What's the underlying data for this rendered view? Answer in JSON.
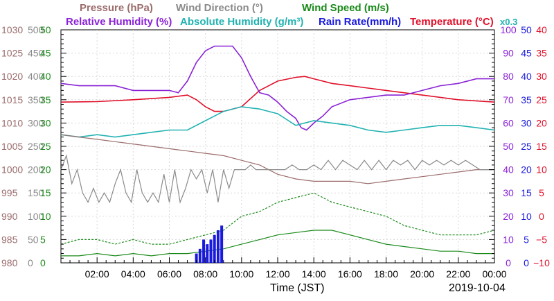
{
  "chart_data": {
    "type": "line",
    "xlabel": "Time (JST)",
    "date_label": "2019-10-04",
    "x_ticks": [
      "02:00",
      "04:00",
      "06:00",
      "08:00",
      "10:00",
      "12:00",
      "14:00",
      "16:00",
      "18:00",
      "20:00",
      "22:00",
      "00:00"
    ],
    "x_hours": [
      0,
      24
    ],
    "legend": [
      {
        "key": "pressure",
        "label": "Pressure (hPa)",
        "color": "#9b6b6b"
      },
      {
        "key": "wind_dir",
        "label": "Wind Direction (°)",
        "color": "#8a8a8a"
      },
      {
        "key": "wind_speed",
        "label": "Wind Speed (m/s)",
        "color": "#1a8a1a"
      },
      {
        "key": "rh",
        "label": "Relative Humidity (%)",
        "color": "#8a22d6"
      },
      {
        "key": "ah",
        "label": "Absolute Humidity (g/m³)",
        "color": "#22b2b2"
      },
      {
        "key": "rain",
        "label": "Rain Rate(mm/h)",
        "color": "#1a1adc"
      },
      {
        "key": "temp",
        "label": "Temperature (°C)",
        "color": "#e0102a"
      }
    ],
    "ah_scale_note": "x0.3",
    "axes": {
      "pressure": {
        "min": 980,
        "max": 1030,
        "ticks": [
          "1030",
          "1025",
          "1020",
          "1015",
          "1010",
          "1005",
          "1000",
          "995",
          "990",
          "985",
          "980"
        ],
        "color": "#9b6b6b"
      },
      "wind_dir": {
        "min": 0,
        "max": 500,
        "ticks": [
          "500",
          "450",
          "400",
          "350",
          "300",
          "250",
          "200",
          "150",
          "100",
          "50",
          "0"
        ],
        "color": "#8a8a8a"
      },
      "wind_speed": {
        "min": 0,
        "max": 50,
        "ticks": [
          "50",
          "45",
          "40",
          "35",
          "30",
          "25",
          "20",
          "15",
          "10",
          "5",
          "0"
        ],
        "color": "#1a8a1a"
      },
      "rh": {
        "min": 0,
        "max": 100,
        "ticks": [
          "100",
          "90",
          "80",
          "70",
          "60",
          "50",
          "40",
          "30",
          "20",
          "10",
          "0"
        ],
        "color": "#8a22d6"
      },
      "rain": {
        "min": 0,
        "max": 50,
        "ticks": [
          "50",
          "45",
          "40",
          "35",
          "30",
          "25",
          "20",
          "15",
          "10",
          "5",
          "0"
        ],
        "color": "#1a1adc"
      },
      "temp": {
        "min": -10,
        "max": 40,
        "ticks": [
          "40",
          "35",
          "30",
          "25",
          "20",
          "15",
          "10",
          "5",
          "0",
          "−5",
          "−10"
        ],
        "color": "#e0102a"
      }
    },
    "series": [
      {
        "key": "temp",
        "name": "Temperature (°C)",
        "x": [
          0,
          2,
          4,
          6,
          7,
          7.5,
          8,
          8.5,
          9,
          10,
          11,
          12,
          13,
          13.5,
          14,
          15,
          16,
          17,
          18,
          20,
          22,
          24
        ],
        "y": [
          24.5,
          24.6,
          25,
          25.5,
          26,
          25,
          23.5,
          22.5,
          22.5,
          23.5,
          27,
          29,
          29.8,
          30,
          29.5,
          28.5,
          28,
          27.5,
          27,
          26,
          25,
          24.5
        ]
      },
      {
        "key": "rh",
        "name": "Relative Humidity (%)",
        "x": [
          0,
          1,
          2,
          3,
          4,
          5,
          6,
          6.5,
          7,
          7.5,
          8,
          8.5,
          9,
          9.5,
          10,
          10.5,
          11,
          11.5,
          12,
          12.5,
          13,
          13.3,
          13.6,
          14,
          14.5,
          15,
          16,
          17,
          18,
          19,
          20,
          21,
          22,
          23,
          24
        ],
        "y": [
          77,
          76,
          76,
          76,
          74,
          74,
          74,
          73,
          78,
          86,
          91,
          93,
          93,
          93,
          88,
          80,
          73,
          72,
          69,
          65,
          62,
          58,
          57,
          60,
          63,
          67,
          70,
          71,
          72,
          72,
          74,
          76,
          77,
          79,
          79
        ]
      },
      {
        "key": "ah",
        "name": "Absolute Humidity (g/m³)",
        "x": [
          0,
          1,
          2,
          3,
          4,
          5,
          6,
          7,
          8,
          9,
          10,
          11,
          12,
          13,
          14,
          15,
          16,
          17,
          18,
          19,
          20,
          21,
          22,
          23,
          24
        ],
        "y": [
          55,
          54,
          55,
          54,
          55,
          56,
          57,
          57,
          61,
          65,
          67,
          66,
          64,
          59,
          61,
          60,
          59,
          57,
          56,
          57,
          58,
          59,
          59,
          58,
          57
        ]
      },
      {
        "key": "pressure",
        "name": "Pressure (hPa)",
        "x": [
          0,
          1,
          2,
          3,
          4,
          5,
          6,
          7,
          8,
          9,
          10,
          11,
          12,
          13,
          14,
          15,
          16,
          17,
          18,
          19,
          20,
          21,
          22,
          23,
          24
        ],
        "y": [
          1007.5,
          1007,
          1006.5,
          1006,
          1005.5,
          1005,
          1004.5,
          1004,
          1003.5,
          1003,
          1002,
          1001,
          999,
          998,
          997.5,
          997.5,
          997.5,
          997,
          997.5,
          998,
          998.5,
          999,
          999.5,
          1000,
          1000
        ]
      },
      {
        "key": "wind_dir",
        "name": "Wind Direction (°)",
        "x": [
          0,
          0.3,
          0.6,
          0.9,
          1.2,
          1.5,
          1.8,
          2.1,
          2.4,
          2.7,
          3.0,
          3.3,
          3.6,
          3.9,
          4.2,
          4.5,
          4.8,
          5.1,
          5.4,
          5.7,
          6.0,
          6.3,
          6.6,
          6.9,
          7.2,
          7.5,
          7.8,
          8.1,
          8.4,
          8.7,
          9.0,
          9.3,
          9.6,
          9.9,
          10.2,
          10.5,
          10.8,
          11.1,
          11.4,
          11.7,
          12.0,
          12.4,
          12.8,
          13.2,
          13.6,
          14.0,
          14.4,
          14.8,
          15.2,
          15.6,
          16.0,
          16.4,
          16.8,
          17.2,
          17.6,
          18.0,
          18.4,
          18.8,
          19.2,
          19.6,
          20.0,
          20.4,
          20.8,
          21.2,
          21.6,
          22.0,
          22.4,
          22.8,
          23.2,
          23.6,
          24.0
        ],
        "y": [
          200,
          230,
          170,
          200,
          150,
          130,
          160,
          130,
          150,
          130,
          170,
          200,
          150,
          130,
          200,
          150,
          130,
          150,
          130,
          190,
          130,
          200,
          130,
          160,
          200,
          180,
          200,
          150,
          200,
          130,
          200,
          160,
          200,
          200,
          200,
          210,
          200,
          200,
          200,
          200,
          200,
          200,
          210,
          200,
          200,
          210,
          200,
          220,
          200,
          220,
          210,
          200,
          220,
          200,
          220,
          200,
          220,
          210,
          220,
          200,
          220,
          210,
          220,
          210,
          220,
          210,
          220,
          210,
          200,
          200,
          200
        ]
      },
      {
        "key": "wind_speed",
        "name": "Wind Speed (m/s)",
        "x": [
          0,
          1,
          2,
          3,
          4,
          5,
          6,
          7,
          8,
          9,
          10,
          11,
          12,
          13,
          14,
          15,
          16,
          17,
          18,
          19,
          20,
          21,
          22,
          23,
          24
        ],
        "y": [
          1.5,
          1.5,
          2,
          1.5,
          2,
          1.5,
          2,
          2,
          2.5,
          3,
          4,
          5,
          6,
          6.5,
          7,
          7,
          6,
          5,
          4,
          3.5,
          3,
          2.5,
          2.5,
          2,
          2
        ]
      },
      {
        "key": "wind_gust",
        "name": "",
        "x": [
          0,
          1,
          2,
          3,
          4,
          5,
          6,
          7,
          8,
          9,
          10,
          11,
          12,
          13,
          14,
          15,
          16,
          17,
          18,
          19,
          20,
          21,
          22,
          23,
          24
        ],
        "y": [
          4,
          5,
          5,
          4,
          5,
          4,
          4,
          5,
          6,
          7,
          10,
          11,
          13,
          14,
          15,
          13,
          12,
          11,
          10,
          8,
          7,
          6,
          6,
          6,
          7
        ]
      },
      {
        "key": "rain",
        "name": "Rain Rate(mm/h)",
        "x": [
          7.5,
          7.7,
          7.9,
          8.1,
          8.3,
          8.5,
          8.7,
          8.9,
          9.1
        ],
        "y": [
          2,
          3,
          5,
          4,
          5,
          6,
          7,
          8,
          0
        ]
      }
    ]
  }
}
